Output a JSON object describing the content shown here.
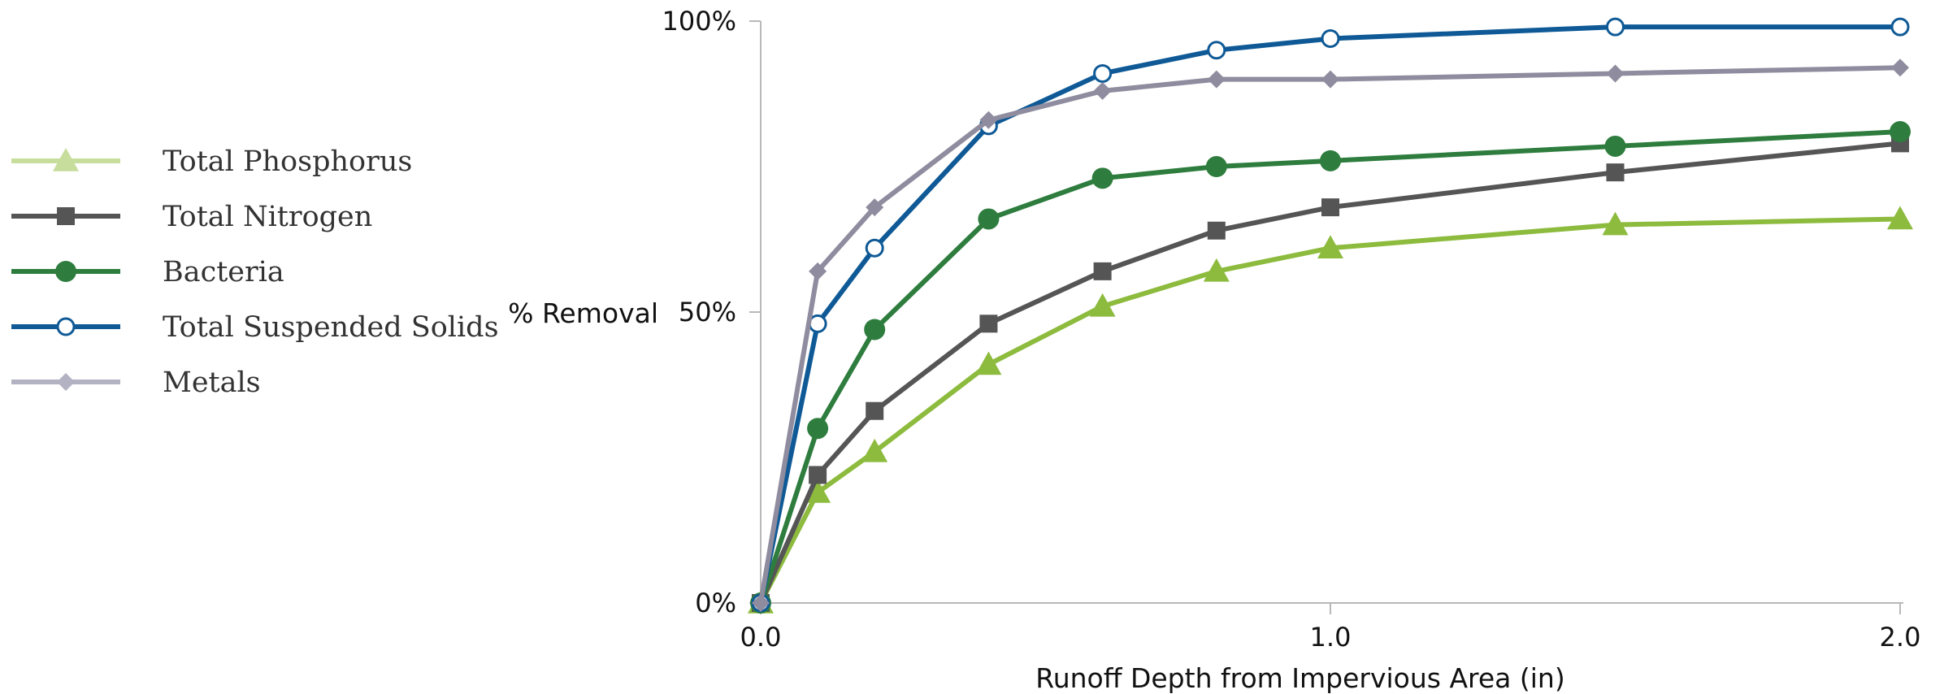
{
  "chart_data": {
    "type": "line",
    "xlabel": "Runoff Depth from Impervious Area (in)",
    "ylabel": "% Removal",
    "xlim": [
      0,
      2.0
    ],
    "ylim": [
      0,
      100
    ],
    "x_ticks": [
      0.0,
      1.0,
      2.0
    ],
    "x_tick_labels": [
      "0.0",
      "1.0",
      "2.0"
    ],
    "y_ticks": [
      0,
      50,
      100
    ],
    "y_tick_labels": [
      "0%",
      "50%",
      "100%"
    ],
    "grid": false,
    "legend_position": "left",
    "series": [
      {
        "name": "Total Phosphorus",
        "color": "#8dbb3e",
        "legend_color": "#c7dd9c",
        "marker": "triangle",
        "x": [
          0.0,
          0.1,
          0.2,
          0.4,
          0.6,
          0.8,
          1.0,
          1.5,
          2.0
        ],
        "y": [
          0,
          19,
          26,
          41,
          51,
          57,
          61,
          65,
          66
        ]
      },
      {
        "name": "Total Nitrogen",
        "color": "#555555",
        "legend_color": "#555555",
        "marker": "square",
        "x": [
          0.0,
          0.1,
          0.2,
          0.4,
          0.6,
          0.8,
          1.0,
          1.5,
          2.0
        ],
        "y": [
          0,
          22,
          33,
          48,
          57,
          64,
          68,
          74,
          79
        ]
      },
      {
        "name": "Bacteria",
        "color": "#2e7d3e",
        "legend_color": "#2e7d3e",
        "marker": "circle",
        "x": [
          0.0,
          0.1,
          0.2,
          0.4,
          0.6,
          0.8,
          1.0,
          1.5,
          2.0
        ],
        "y": [
          0,
          30,
          47,
          66,
          73,
          75,
          76,
          78.5,
          81
        ]
      },
      {
        "name": "Total Suspended Solids",
        "color": "#0f5a96",
        "legend_color": "#0f5a96",
        "marker": "open-circle",
        "x": [
          0.0,
          0.1,
          0.2,
          0.4,
          0.6,
          0.8,
          1.0,
          1.5,
          2.0
        ],
        "y": [
          0,
          48,
          61,
          82,
          91,
          95,
          97,
          99,
          99
        ]
      },
      {
        "name": "Metals",
        "color": "#8e8c9e",
        "legend_color": "#b3b2c2",
        "marker": "diamond",
        "x": [
          0.0,
          0.1,
          0.2,
          0.4,
          0.6,
          0.8,
          1.0,
          1.5,
          2.0
        ],
        "y": [
          0,
          57,
          68,
          83,
          88,
          90,
          90,
          91,
          92
        ]
      }
    ]
  }
}
